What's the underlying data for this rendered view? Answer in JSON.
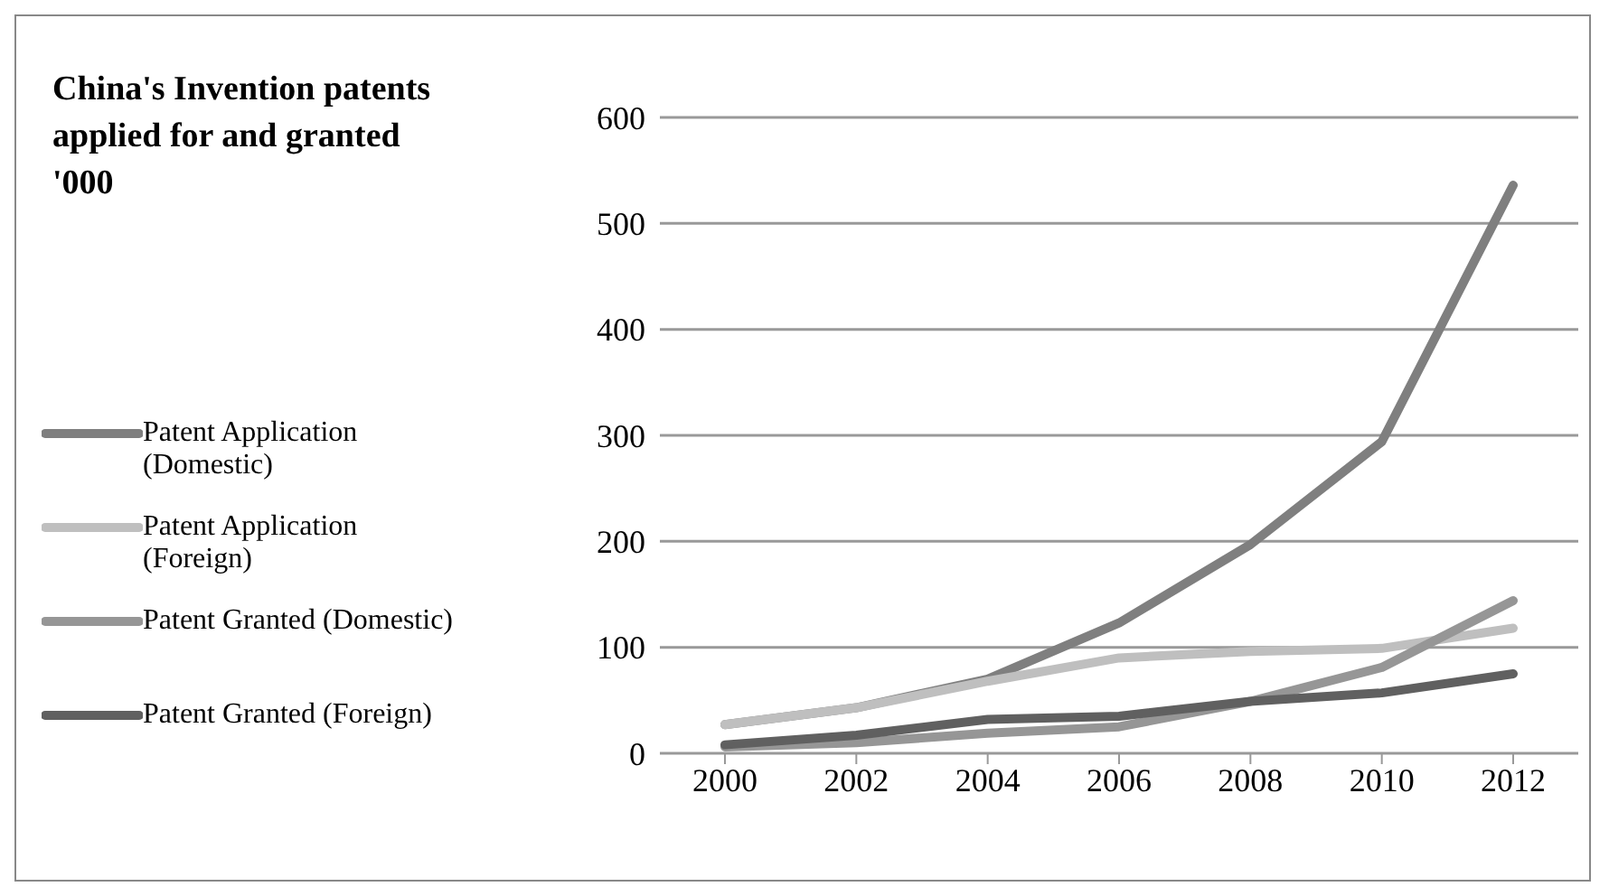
{
  "chart_data": {
    "type": "line",
    "title": "China's Invention patents applied for and granted '000",
    "categories": [
      "2000",
      "2002",
      "2004",
      "2006",
      "2008",
      "2010",
      "2012"
    ],
    "series": [
      {
        "name": "Patent Application (Domestic)",
        "color": "#7f7f7f",
        "values": [
          27,
          43,
          70,
          123,
          197,
          294,
          536
        ]
      },
      {
        "name": "Patent Application (Foreign)",
        "color": "#bfbfbf",
        "values": [
          27,
          43,
          68,
          90,
          96,
          99,
          118
        ]
      },
      {
        "name": "Patent Granted (Domestic)",
        "color": "#969696",
        "values": [
          6,
          10,
          19,
          25,
          49,
          81,
          144
        ]
      },
      {
        "name": "Patent Granted (Foreign)",
        "color": "#606060",
        "values": [
          8,
          17,
          32,
          35,
          49,
          57,
          75
        ]
      }
    ],
    "ylim": [
      0,
      600
    ],
    "yticks": [
      0,
      100,
      200,
      300,
      400,
      500,
      600
    ],
    "grid": "y",
    "legend": "left",
    "marker": "none",
    "line_style": "solid"
  }
}
